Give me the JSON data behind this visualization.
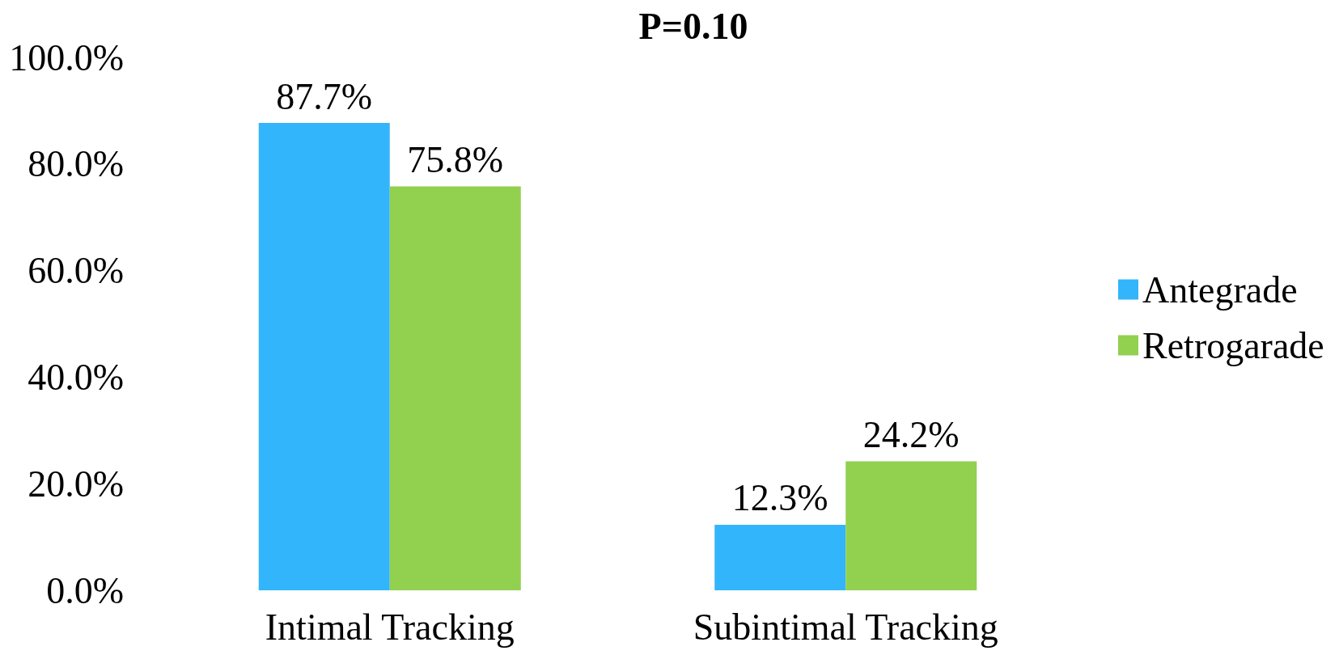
{
  "chart_data": {
    "type": "bar",
    "title": "P=0.10",
    "categories": [
      "Intimal Tracking",
      "Subintimal Tracking"
    ],
    "series": [
      {
        "name": "Antegrade",
        "color": "#33b5fc",
        "values": [
          87.7,
          12.3
        ],
        "value_labels": [
          "87.7%",
          "12.3%"
        ]
      },
      {
        "name": "Retrogarade",
        "color": "#92d050",
        "values": [
          75.8,
          24.2
        ],
        "value_labels": [
          "75.8%",
          "24.2%"
        ]
      }
    ],
    "ylim": [
      0,
      100
    ],
    "yticks": [
      {
        "value": 0,
        "label": "0.0%"
      },
      {
        "value": 20,
        "label": "20.0%"
      },
      {
        "value": 40,
        "label": "40.0%"
      },
      {
        "value": 60,
        "label": "60.0%"
      },
      {
        "value": 80,
        "label": "80.0%"
      },
      {
        "value": 100,
        "label": "100.0%"
      }
    ],
    "grid": false,
    "legend": "right"
  }
}
